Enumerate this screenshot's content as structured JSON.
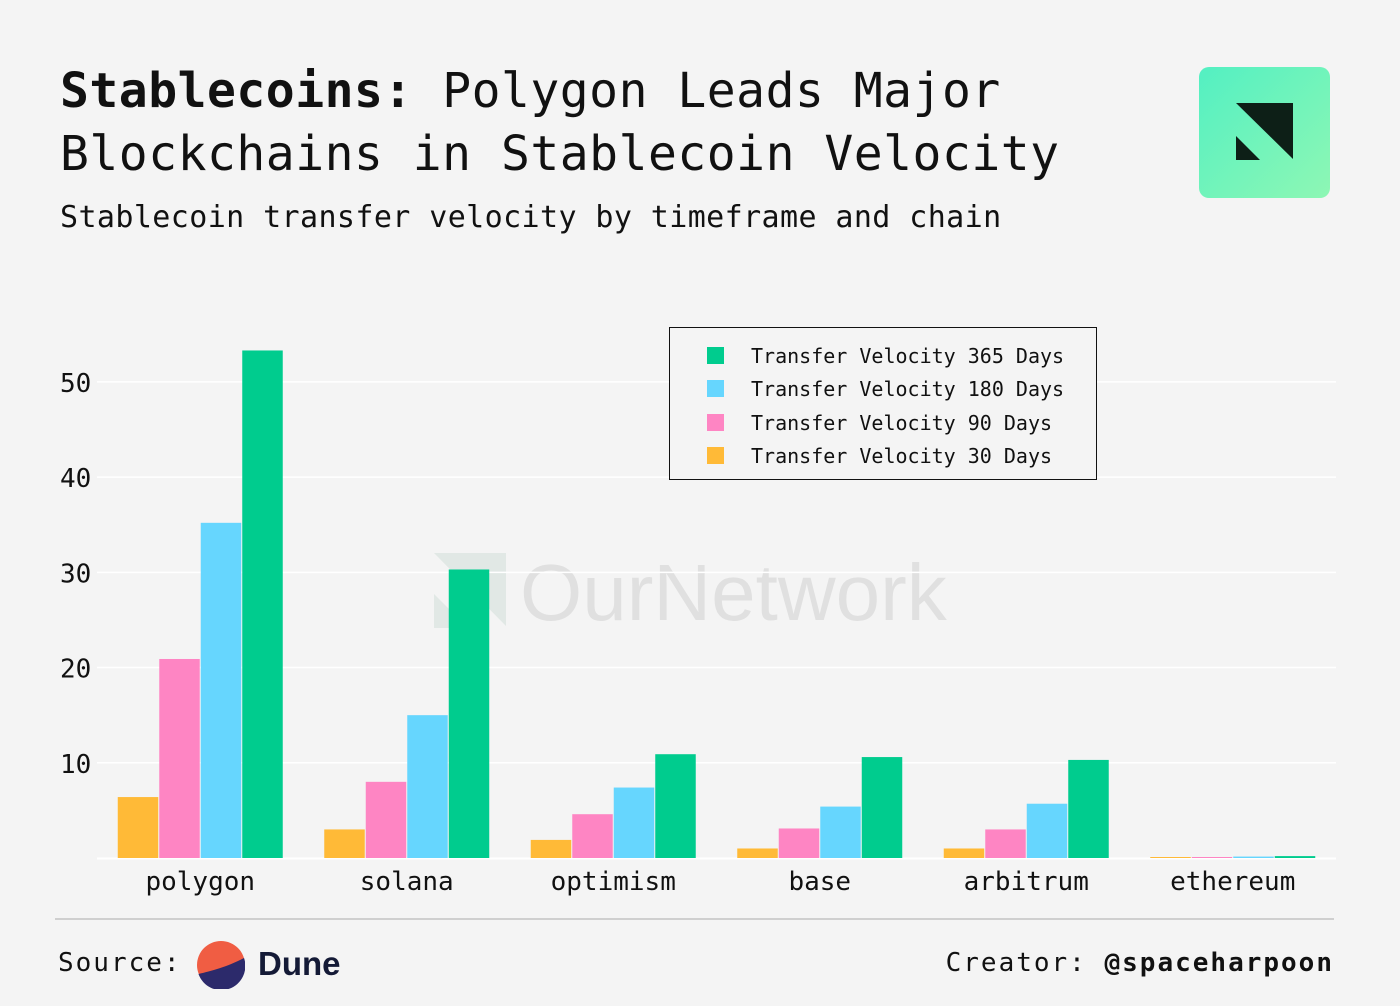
{
  "header": {
    "title_lead": "Stablecoins:",
    "title_rest": "Polygon Leads Major Blockchains in Stablecoin Velocity",
    "subtitle": "Stablecoin transfer velocity by timeframe and chain"
  },
  "watermark": {
    "text": "OurNetwork"
  },
  "footer": {
    "source_label": "Source:",
    "source_name": "Dune",
    "creator_label": "Creator:",
    "creator_handle": "@spaceharpoon"
  },
  "colors": {
    "d365": "#00cc8e",
    "d180": "#66d6fe",
    "d90": "#fe85c3",
    "d30": "#ffba37",
    "background": "#f4f4f4",
    "dune_top": "#f05d43",
    "dune_bottom": "#2c2a6b"
  },
  "chart_data": {
    "type": "bar",
    "title": "Stablecoins: Polygon Leads Major Blockchains in Stablecoin Velocity",
    "subtitle": "Stablecoin transfer velocity by timeframe and chain",
    "categories": [
      "polygon",
      "solana",
      "optimism",
      "base",
      "arbitrum",
      "ethereum"
    ],
    "series": [
      {
        "name": "Transfer Velocity 30 Days",
        "color": "#ffba37",
        "values": [
          6.4,
          3.0,
          1.9,
          1.0,
          1.0,
          0.05
        ]
      },
      {
        "name": "Transfer Velocity 90 Days",
        "color": "#fe85c3",
        "values": [
          20.9,
          8.0,
          4.6,
          3.1,
          3.0,
          0.1
        ]
      },
      {
        "name": "Transfer Velocity 180 Days",
        "color": "#66d6fe",
        "values": [
          35.2,
          15.0,
          7.4,
          5.4,
          5.7,
          0.15
        ]
      },
      {
        "name": "Transfer Velocity 365 Days",
        "color": "#00cc8e",
        "values": [
          53.3,
          30.3,
          10.9,
          10.6,
          10.3,
          0.2
        ]
      }
    ],
    "legend_order": [
      "Transfer Velocity 365 Days",
      "Transfer Velocity 180 Days",
      "Transfer Velocity 90 Days",
      "Transfer Velocity 30 Days"
    ],
    "yticks": [
      10,
      20,
      30,
      40,
      50
    ],
    "ylim": [
      0,
      56.5
    ],
    "xlabel": "",
    "ylabel": "",
    "grid": true,
    "legend_position": "top-right"
  }
}
